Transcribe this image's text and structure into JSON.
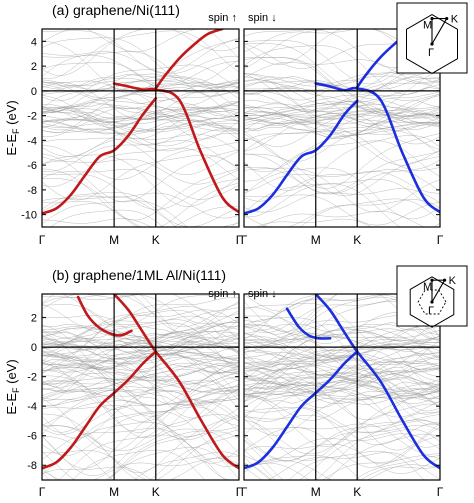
{
  "chart_data": [
    {
      "type": "line",
      "panel_label": "(a) graphene/Ni(111)",
      "ylabel_main": "E-E",
      "ylabel_sub": "F",
      "ylabel_unit": " (eV)",
      "ylim": [
        -11,
        5
      ],
      "yticks": [
        -10,
        -8,
        -6,
        -4,
        -2,
        0,
        2,
        4
      ],
      "ytick_labels": [
        "-10",
        "-8",
        "-6",
        "-4",
        "-2",
        "0",
        "2",
        "4"
      ],
      "kpoints": [
        "Γ",
        "M",
        "K",
        "Γ"
      ],
      "kpoint_positions": [
        0,
        0.5,
        0.789,
        1.366
      ],
      "spin_labels": [
        "spin ↑",
        "spin ↓"
      ],
      "spin_colors": [
        "#c0181b",
        "#1c2fe0"
      ],
      "background_color": "#9a9a9a",
      "inset_labels": {
        "M": "M",
        "K": "K",
        "Gamma": "Γ"
      },
      "series": [
        {
          "spin": "up",
          "color": "#c0181b",
          "lower_pi_band": {
            "x": [
              0,
              0.1,
              0.2,
              0.3,
              0.4,
              0.5,
              0.6,
              0.7,
              0.789
            ],
            "y": [
              -9.9,
              -9.5,
              -8.4,
              -6.8,
              -5.3,
              -4.8,
              -3.6,
              -1.9,
              -0.6
            ]
          },
          "upper_band": {
            "x": [
              0.5,
              0.6,
              0.7,
              0.789,
              0.95,
              1.1,
              1.25,
              1.366
            ],
            "y": [
              0.6,
              0.35,
              0.1,
              0.1,
              -0.7,
              -4.9,
              -8.6,
              -9.8
            ]
          },
          "upper_pi_star": {
            "x": [
              0.789,
              0.85,
              0.95,
              1.05,
              1.15,
              1.25
            ],
            "y": [
              0.2,
              1.2,
              2.6,
              3.7,
              4.6,
              5.0
            ]
          }
        },
        {
          "spin": "down",
          "color": "#1c2fe0",
          "lower_pi_band": {
            "x": [
              0,
              0.1,
              0.2,
              0.3,
              0.4,
              0.5,
              0.6,
              0.7,
              0.789
            ],
            "y": [
              -9.9,
              -9.5,
              -8.4,
              -6.8,
              -5.3,
              -4.8,
              -3.6,
              -1.9,
              -0.8
            ]
          },
          "upper_band": {
            "x": [
              0.5,
              0.6,
              0.7,
              0.789,
              0.95,
              1.1,
              1.25,
              1.366
            ],
            "y": [
              0.6,
              0.35,
              0.05,
              0.2,
              -0.7,
              -4.9,
              -8.6,
              -9.8
            ]
          },
          "upper_pi_star": {
            "x": [
              0.789,
              0.85,
              0.95,
              1.05,
              1.15,
              1.25
            ],
            "y": [
              0.3,
              1.3,
              2.7,
              3.8,
              4.7,
              5.0
            ]
          }
        }
      ]
    },
    {
      "type": "line",
      "panel_label": "(b) graphene/1ML Al/Ni(111)",
      "ylabel_main": "E-E",
      "ylabel_sub": "F",
      "ylabel_unit": " (eV)",
      "ylim": [
        -9,
        3.6
      ],
      "yticks": [
        -8,
        -6,
        -4,
        -2,
        0,
        2
      ],
      "ytick_labels": [
        "-8",
        "-6",
        "-4",
        "-2",
        "0",
        "2"
      ],
      "kpoints": [
        "Γ",
        "M",
        "K",
        "Γ"
      ],
      "kpoint_positions": [
        0,
        0.5,
        0.789,
        1.366
      ],
      "spin_labels": [
        "spin ↑",
        "spin ↓"
      ],
      "spin_colors": [
        "#c0181b",
        "#1c2fe0"
      ],
      "background_color": "#9a9a9a",
      "inset_labels": {
        "M": "M",
        "K": "K",
        "Gamma": "Γ"
      },
      "series": [
        {
          "spin": "up",
          "color": "#c0181b",
          "lower_pi_band": {
            "x": [
              0,
              0.1,
              0.2,
              0.3,
              0.4,
              0.5,
              0.6,
              0.7,
              0.789
            ],
            "y": [
              -8.2,
              -7.8,
              -6.8,
              -5.4,
              -4.0,
              -3.1,
              -2.2,
              -1.1,
              -0.3
            ]
          },
          "upper_pi_star": {
            "x": [
              0.5,
              0.6,
              0.7,
              0.789,
              0.95,
              1.1,
              1.25,
              1.366
            ],
            "y": [
              3.6,
              2.5,
              1.0,
              -0.3,
              -2.3,
              -4.9,
              -7.3,
              -8.2
            ]
          },
          "surface_band": {
            "x": [
              0.25,
              0.32,
              0.4,
              0.48,
              0.55,
              0.62
            ],
            "y": [
              3.4,
              2.1,
              1.3,
              0.9,
              0.8,
              1.1
            ]
          }
        },
        {
          "spin": "down",
          "color": "#1c2fe0",
          "lower_pi_band": {
            "x": [
              0,
              0.1,
              0.2,
              0.3,
              0.4,
              0.5,
              0.6,
              0.7,
              0.789
            ],
            "y": [
              -8.2,
              -7.8,
              -6.8,
              -5.4,
              -4.0,
              -3.1,
              -2.2,
              -1.1,
              -0.3
            ]
          },
          "upper_pi_star": {
            "x": [
              0.5,
              0.6,
              0.7,
              0.789,
              0.95,
              1.1,
              1.25,
              1.366
            ],
            "y": [
              3.6,
              2.5,
              1.0,
              -0.3,
              -2.3,
              -4.9,
              -7.3,
              -8.2
            ]
          },
          "surface_band": {
            "x": [
              0.3,
              0.38,
              0.45,
              0.52,
              0.6
            ],
            "y": [
              2.6,
              1.4,
              0.8,
              0.6,
              0.6
            ]
          }
        }
      ]
    }
  ]
}
